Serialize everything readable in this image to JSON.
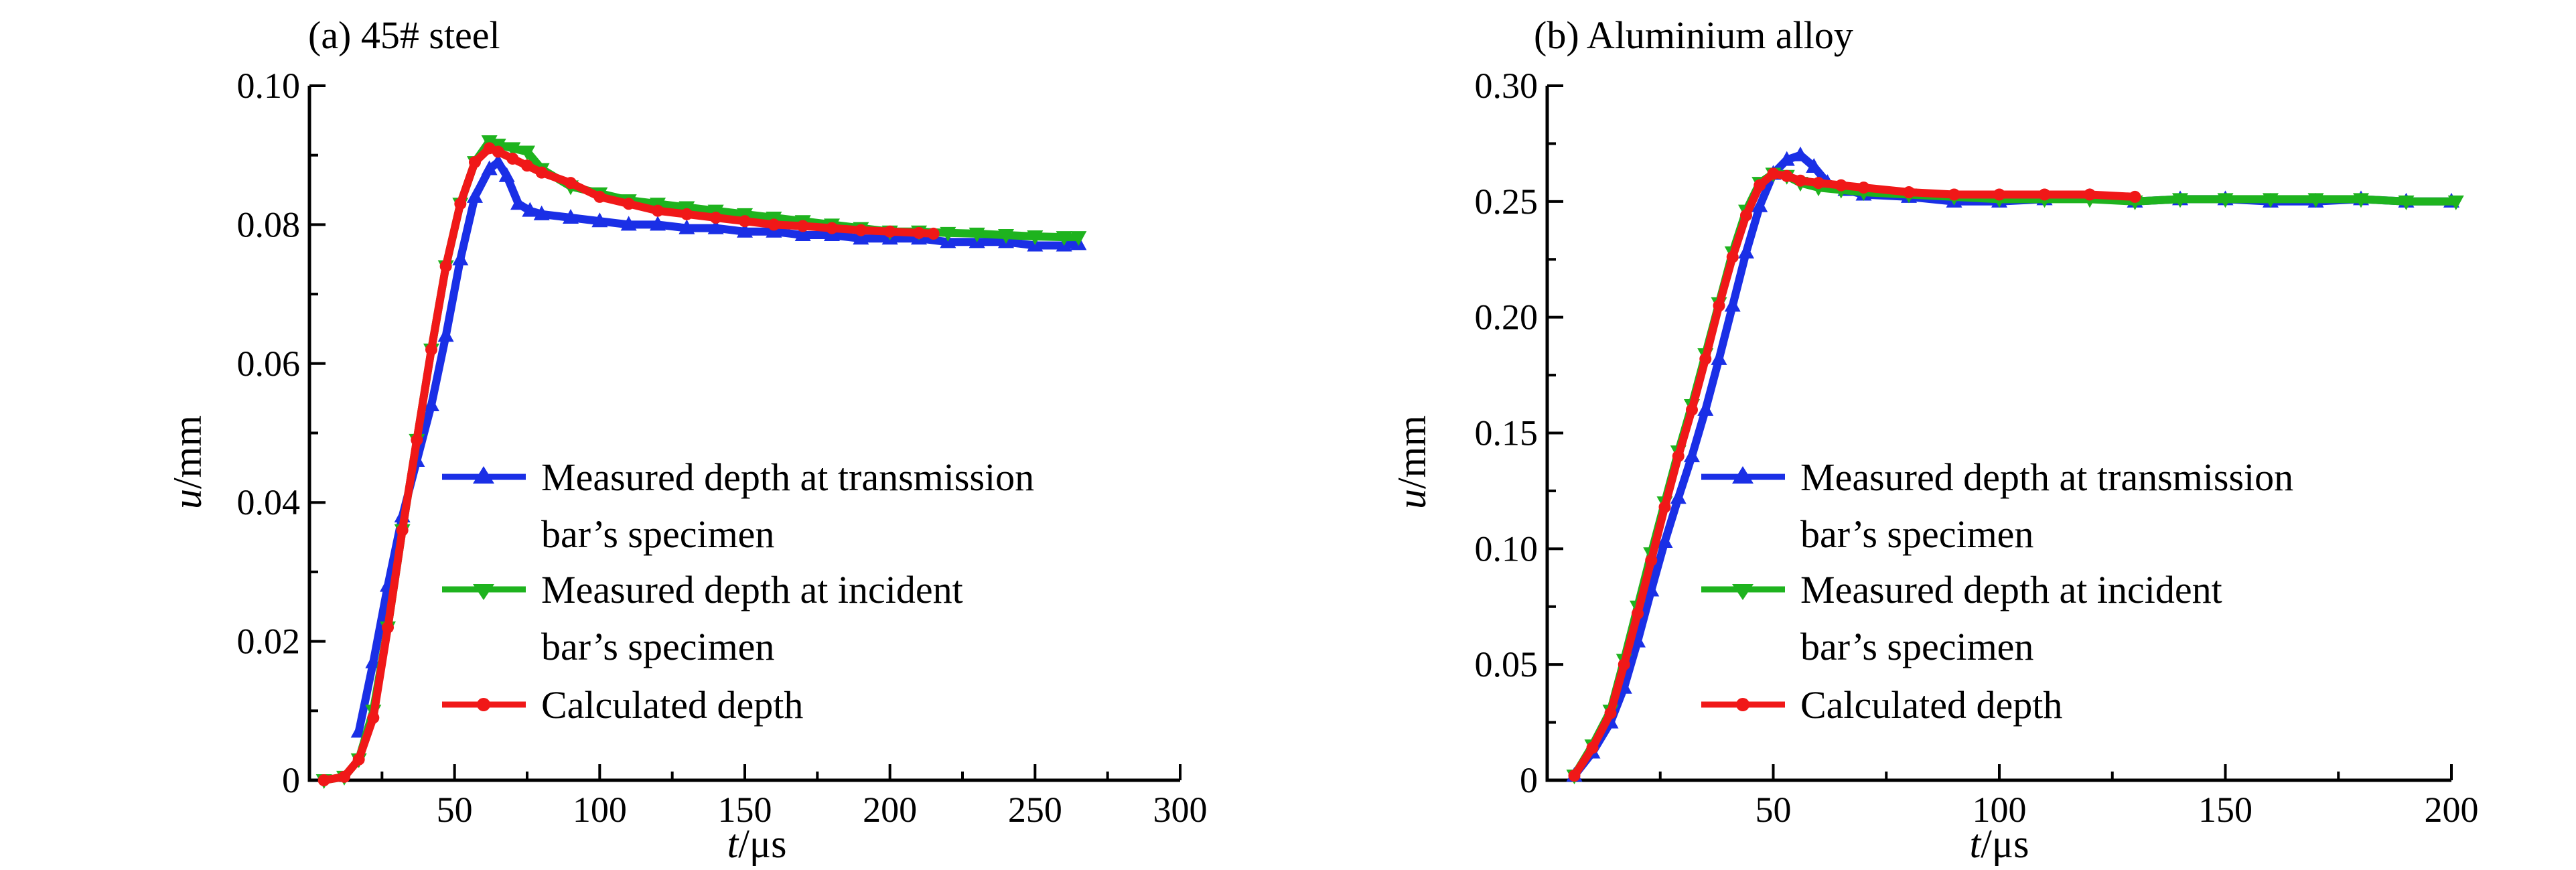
{
  "chart_data": [
    {
      "type": "line",
      "title": "(a) 45# steel",
      "xlabel_var": "t",
      "xlabel_unit": "/μs",
      "ylabel_var": "u",
      "ylabel_unit": "/mm",
      "xlim": [
        0,
        300
      ],
      "ylim": [
        0,
        0.1
      ],
      "xticks": [
        50,
        100,
        150,
        200,
        250,
        300
      ],
      "xtick_labels": [
        "50",
        "100",
        "150",
        "200",
        "250",
        "300"
      ],
      "yticks": [
        0,
        0.02,
        0.04,
        0.06,
        0.08,
        0.1
      ],
      "ytick_labels": [
        "0",
        "0.02",
        "0.04",
        "0.06",
        "0.08",
        "0.10"
      ],
      "legend_position": "lower-right",
      "series": [
        {
          "name": "Measured depth at transmission bar's specimen",
          "legend_lines": [
            "Measured depth at transmission",
            "bar’s specimen"
          ],
          "color": "#1a2fe6",
          "marker": "triangle-up",
          "x": [
            17,
            22,
            27,
            32,
            37,
            42,
            47,
            52,
            57,
            62,
            65,
            68,
            72,
            76,
            80,
            90,
            100,
            110,
            120,
            130,
            140,
            150,
            160,
            170,
            180,
            190,
            200,
            210,
            220,
            230,
            240,
            250,
            260,
            265
          ],
          "y": [
            0.007,
            0.017,
            0.028,
            0.038,
            0.046,
            0.054,
            0.064,
            0.075,
            0.084,
            0.088,
            0.089,
            0.087,
            0.083,
            0.082,
            0.0815,
            0.081,
            0.0805,
            0.08,
            0.08,
            0.0795,
            0.0795,
            0.079,
            0.079,
            0.0785,
            0.0785,
            0.078,
            0.078,
            0.078,
            0.0775,
            0.0775,
            0.0775,
            0.077,
            0.077,
            0.0772
          ]
        },
        {
          "name": "Measured depth at incident bar's specimen",
          "legend_lines": [
            "Measured depth at incident",
            "bar’s specimen"
          ],
          "color": "#1eb31e",
          "marker": "triangle-down",
          "x": [
            5,
            12,
            17,
            22,
            27,
            32,
            37,
            42,
            47,
            52,
            57,
            62,
            65,
            70,
            75,
            80,
            90,
            100,
            110,
            120,
            130,
            140,
            150,
            160,
            170,
            180,
            190,
            200,
            210,
            220,
            230,
            240,
            250,
            260,
            265
          ],
          "y": [
            0,
            0.0005,
            0.003,
            0.01,
            0.022,
            0.036,
            0.049,
            0.062,
            0.074,
            0.083,
            0.089,
            0.092,
            0.0915,
            0.091,
            0.0905,
            0.088,
            0.0855,
            0.0845,
            0.0835,
            0.083,
            0.0825,
            0.082,
            0.0815,
            0.081,
            0.0805,
            0.08,
            0.0795,
            0.079,
            0.079,
            0.0788,
            0.0787,
            0.0785,
            0.0783,
            0.0782,
            0.0782
          ]
        },
        {
          "name": "Calculated depth",
          "legend_lines": [
            "Calculated depth"
          ],
          "color": "#f01818",
          "marker": "circle",
          "x": [
            5,
            12,
            17,
            22,
            27,
            32,
            37,
            42,
            47,
            52,
            57,
            62,
            65,
            70,
            75,
            80,
            90,
            100,
            110,
            120,
            130,
            140,
            150,
            160,
            170,
            180,
            190,
            200,
            210,
            215
          ],
          "y": [
            0,
            0.0005,
            0.003,
            0.009,
            0.022,
            0.036,
            0.049,
            0.062,
            0.074,
            0.083,
            0.089,
            0.091,
            0.0905,
            0.0895,
            0.0885,
            0.0875,
            0.086,
            0.084,
            0.083,
            0.082,
            0.0815,
            0.081,
            0.0805,
            0.08,
            0.0798,
            0.0795,
            0.0792,
            0.079,
            0.0788,
            0.0787
          ]
        }
      ]
    },
    {
      "type": "line",
      "title": "(b) Aluminium alloy",
      "xlabel_var": "t",
      "xlabel_unit": "/μs",
      "ylabel_var": "u",
      "ylabel_unit": "/mm",
      "xlim": [
        0,
        200
      ],
      "ylim": [
        0,
        0.3
      ],
      "xticks": [
        50,
        100,
        150,
        200
      ],
      "xtick_labels": [
        "50",
        "100",
        "150",
        "200"
      ],
      "yticks": [
        0,
        0.05,
        0.1,
        0.15,
        0.2,
        0.25,
        0.3
      ],
      "ytick_labels": [
        "0",
        "0.05",
        "0.10",
        "0.15",
        "0.20",
        "0.25",
        "0.30"
      ],
      "legend_position": "lower-right",
      "series": [
        {
          "name": "Measured depth at transmission bar's specimen",
          "legend_lines": [
            "Measured depth at transmission",
            "bar’s specimen"
          ],
          "color": "#1a2fe6",
          "marker": "triangle-up",
          "x": [
            6,
            10,
            14,
            17,
            20,
            23,
            26,
            29,
            32,
            35,
            38,
            41,
            44,
            47,
            50,
            53,
            56,
            59,
            62,
            66,
            70,
            80,
            90,
            100,
            110,
            120,
            130,
            140,
            150,
            160,
            170,
            180,
            190,
            200
          ],
          "y": [
            0.002,
            0.012,
            0.025,
            0.04,
            0.06,
            0.082,
            0.103,
            0.122,
            0.14,
            0.16,
            0.182,
            0.205,
            0.228,
            0.248,
            0.262,
            0.268,
            0.27,
            0.265,
            0.258,
            0.255,
            0.253,
            0.252,
            0.25,
            0.25,
            0.251,
            0.252,
            0.25,
            0.251,
            0.251,
            0.25,
            0.25,
            0.251,
            0.25,
            0.25
          ]
        },
        {
          "name": "Measured depth at incident bar's specimen",
          "legend_lines": [
            "Measured depth at incident",
            "bar’s specimen"
          ],
          "color": "#1eb31e",
          "marker": "triangle-down",
          "x": [
            6,
            10,
            14,
            17,
            20,
            23,
            26,
            29,
            32,
            35,
            38,
            41,
            44,
            47,
            50,
            53,
            56,
            60,
            65,
            70,
            80,
            90,
            100,
            110,
            120,
            130,
            140,
            150,
            160,
            170,
            180,
            190,
            201
          ],
          "y": [
            0.002,
            0.015,
            0.03,
            0.052,
            0.075,
            0.098,
            0.12,
            0.142,
            0.162,
            0.184,
            0.206,
            0.228,
            0.246,
            0.258,
            0.262,
            0.261,
            0.258,
            0.256,
            0.255,
            0.254,
            0.253,
            0.252,
            0.251,
            0.251,
            0.251,
            0.25,
            0.251,
            0.251,
            0.251,
            0.251,
            0.251,
            0.25,
            0.25
          ]
        },
        {
          "name": "Calculated depth",
          "legend_lines": [
            "Calculated depth"
          ],
          "color": "#f01818",
          "marker": "circle",
          "x": [
            6,
            10,
            14,
            17,
            20,
            23,
            26,
            29,
            32,
            35,
            38,
            41,
            44,
            47,
            50,
            53,
            56,
            60,
            65,
            70,
            80,
            90,
            100,
            110,
            120,
            130
          ],
          "y": [
            0.002,
            0.014,
            0.029,
            0.05,
            0.072,
            0.095,
            0.118,
            0.14,
            0.16,
            0.182,
            0.205,
            0.226,
            0.244,
            0.257,
            0.262,
            0.261,
            0.259,
            0.258,
            0.257,
            0.256,
            0.254,
            0.253,
            0.253,
            0.253,
            0.253,
            0.252
          ]
        }
      ]
    }
  ]
}
